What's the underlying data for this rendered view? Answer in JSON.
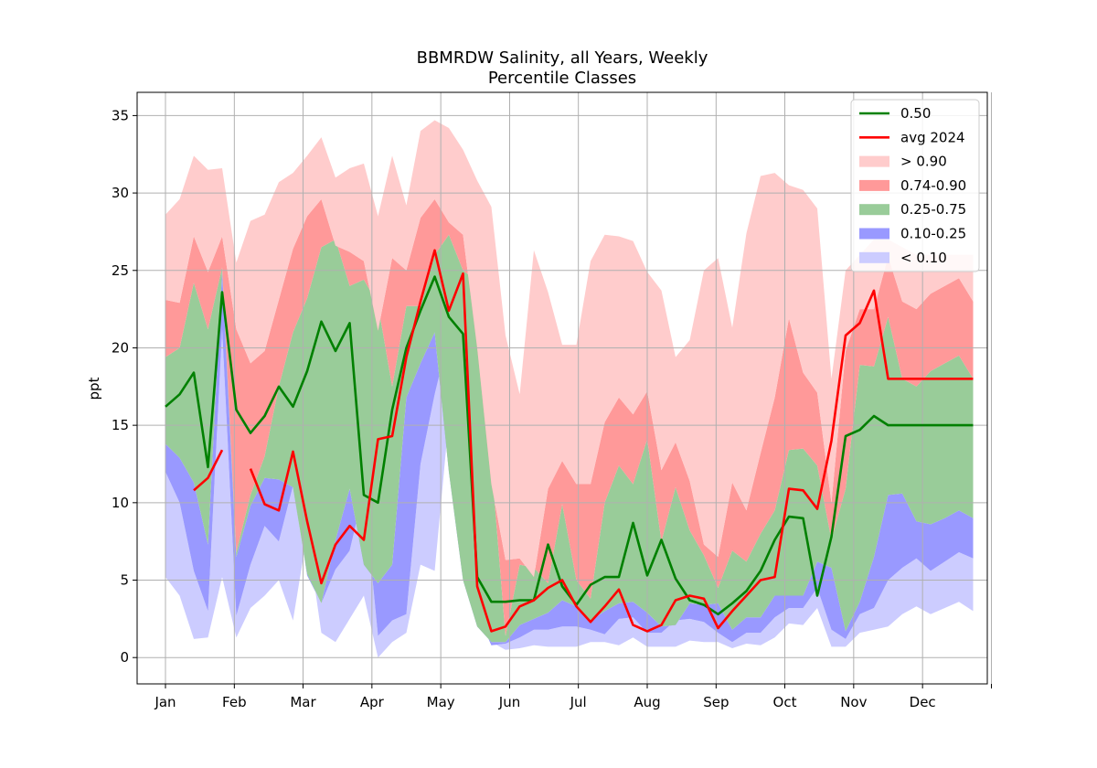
{
  "chart_data": {
    "type": "area",
    "title": "BBMRDW Salinity, all Years, Weekly",
    "subtitle": "Percentile Classes",
    "ylabel": "ppt",
    "xlabel": "",
    "ylim": [
      -1.7,
      36.5
    ],
    "y_ticks": [
      0,
      5,
      10,
      15,
      20,
      25,
      30,
      35
    ],
    "month_labels": [
      "Jan",
      "Feb",
      "Mar",
      "Apr",
      "May",
      "Jun",
      "Jul",
      "Aug",
      "Sep",
      "Oct",
      "Nov",
      "Dec"
    ],
    "week_range": [
      -2,
      58
    ],
    "month_tick_weeks": [
      0,
      4.86,
      9.71,
      14.57,
      19.43,
      24.29,
      29.14,
      34,
      38.86,
      43.71,
      48.57,
      53.43,
      58.29
    ],
    "grid": true,
    "legend_position": "top-right",
    "colors": {
      "median": "#008000",
      "avg_2024": "#ff0000",
      "band_gt_090": "#ffcccc",
      "band_074_090": "#ff9999",
      "band_025_075": "#99cc99",
      "band_010_025": "#9999ff",
      "band_lt_010": "#ccccff"
    },
    "legend": [
      "0.50",
      "avg 2024",
      "> 0.90",
      "0.74-0.90",
      "0.25-0.75",
      "0.10-0.25",
      "< 0.10"
    ],
    "weeks": [
      0,
      1,
      2,
      3,
      4,
      5,
      6,
      7,
      8,
      9,
      10,
      11,
      12,
      13,
      14,
      15,
      16,
      17,
      18,
      19,
      20,
      21,
      22,
      23,
      24,
      25,
      26,
      27,
      28,
      29,
      30,
      31,
      32,
      33,
      34,
      35,
      36,
      37,
      38,
      39,
      40,
      41,
      42,
      43,
      44,
      45,
      46,
      47,
      48,
      49,
      50,
      51,
      52,
      53,
      54,
      55,
      56,
      57
    ],
    "percentiles": {
      "p_min": [
        5.2,
        4.0,
        1.2,
        1.3,
        5.2,
        1.3,
        3.2,
        4.0,
        5.0,
        2.4,
        8.0,
        1.6,
        1.0,
        2.5,
        4.0,
        0.0,
        1.0,
        1.6,
        6.0,
        5.6,
        15.4,
        16.5,
        3.0,
        1.0,
        0.5,
        0.6,
        0.8,
        0.7,
        0.7,
        0.7,
        1.0,
        1.0,
        0.8,
        1.3,
        0.7,
        0.7,
        0.7,
        1.1,
        1.0,
        1.0,
        0.6,
        0.9,
        0.8,
        1.3,
        2.2,
        2.1,
        3.2,
        0.7,
        0.7,
        1.6,
        1.8,
        2.0,
        2.8,
        3.3,
        2.8,
        3.2,
        3.6,
        3.0
      ],
      "p10": [
        12.0,
        10.0,
        5.6,
        3.0,
        21.2,
        2.7,
        6.0,
        8.5,
        7.5,
        11.1,
        5.3,
        3.5,
        5.7,
        6.9,
        10.8,
        1.4,
        2.4,
        2.8,
        12.5,
        17.0,
        20.8,
        5.0,
        2.8,
        0.8,
        0.9,
        1.3,
        1.8,
        1.8,
        2.0,
        2.0,
        1.8,
        1.5,
        2.5,
        2.6,
        1.6,
        1.6,
        2.4,
        2.5,
        2.3,
        1.6,
        1.0,
        1.6,
        1.6,
        2.6,
        3.2,
        3.2,
        4.5,
        1.8,
        1.2,
        2.8,
        3.2,
        5.0,
        5.8,
        6.4,
        5.6,
        6.2,
        6.8,
        6.4
      ],
      "p25": [
        13.8,
        12.9,
        11.3,
        7.3,
        25.0,
        6.5,
        9.8,
        11.6,
        11.5,
        11.0,
        5.4,
        3.5,
        7.6,
        10.9,
        6.0,
        4.8,
        6.0,
        16.8,
        19.0,
        21.0,
        12.0,
        5.0,
        2.0,
        1.0,
        1.0,
        2.1,
        2.5,
        2.9,
        3.7,
        3.3,
        2.4,
        3.0,
        3.5,
        3.6,
        2.9,
        2.0,
        2.1,
        3.5,
        3.4,
        3.5,
        1.8,
        2.6,
        2.6,
        4.0,
        4.0,
        4.0,
        6.2,
        5.8,
        1.7,
        3.6,
        6.5,
        10.5,
        10.6,
        8.8,
        8.6,
        9.0,
        9.5,
        9.0
      ],
      "p75": [
        19.4,
        20.0,
        24.2,
        21.2,
        25.2,
        6.8,
        10.5,
        13.0,
        17.5,
        21.0,
        23.2,
        26.5,
        27.0,
        24.0,
        24.4,
        22.8,
        17.5,
        22.7,
        22.7,
        26.0,
        27.3,
        25.0,
        24.3,
        12.6,
        1.4,
        6.0,
        5.8,
        4.8,
        9.9,
        5.0,
        3.8,
        10.0,
        12.4,
        11.2,
        14.1,
        7.5,
        11.0,
        8.2,
        6.6,
        4.5,
        6.9,
        6.2,
        8.0,
        9.5,
        13.4,
        13.5,
        12.4,
        7.6,
        10.9,
        18.9,
        18.8,
        22.0,
        18.0,
        17.5,
        18.5,
        19.0,
        19.5,
        18.0
      ],
      "p90": [
        23.1,
        22.9,
        27.2,
        24.9,
        27.2,
        21.2,
        19.0,
        19.8,
        23.1,
        26.4,
        28.5,
        29.6,
        26.6,
        26.2,
        25.6,
        21.1,
        25.8,
        25.0,
        28.4,
        29.6,
        28.1,
        27.3,
        20.0,
        11.2,
        6.3,
        6.4,
        5.2,
        10.9,
        12.7,
        11.2,
        11.2,
        15.2,
        16.8,
        15.7,
        17.2,
        12.1,
        13.9,
        11.4,
        7.3,
        6.5,
        11.3,
        9.5,
        13.2,
        16.8,
        21.9,
        18.4,
        17.1,
        10.0,
        19.8,
        22.5,
        22.5,
        25.9,
        23.0,
        22.5,
        23.5,
        24.0,
        24.5,
        23.0
      ],
      "p_max": [
        28.6,
        29.6,
        32.4,
        31.5,
        31.6,
        25.5,
        28.2,
        28.6,
        30.7,
        31.3,
        32.4,
        33.6,
        31.0,
        31.6,
        31.9,
        28.5,
        32.4,
        29.2,
        34.0,
        34.7,
        34.2,
        32.8,
        30.8,
        29.1,
        20.8,
        17.0,
        26.3,
        23.6,
        20.2,
        20.2,
        25.6,
        27.3,
        27.2,
        26.9,
        24.9,
        23.7,
        19.4,
        20.5,
        25.0,
        25.8,
        21.3,
        27.4,
        31.1,
        31.3,
        30.5,
        30.2,
        29.0,
        18.0,
        25.0,
        26.0,
        27.0,
        27.0,
        26.5,
        26.0,
        26.0,
        26.0,
        26.0,
        26.0
      ]
    },
    "series": [
      {
        "name": "0.50",
        "x": [
          0,
          1,
          2,
          3,
          4,
          5,
          6,
          7,
          8,
          9,
          10,
          11,
          12,
          13,
          14,
          15,
          16,
          17,
          18,
          19,
          20,
          21,
          22,
          23,
          24,
          25,
          26,
          27,
          28,
          29,
          30,
          31,
          32,
          33,
          34,
          35,
          36,
          37,
          38,
          39,
          40,
          41,
          42,
          43,
          44,
          45,
          46,
          47,
          48,
          49,
          50,
          51,
          52,
          53,
          54,
          55,
          56,
          57
        ],
        "values": [
          16.2,
          17.0,
          18.4,
          12.3,
          23.6,
          16.0,
          14.5,
          15.6,
          17.5,
          16.2,
          18.5,
          21.7,
          19.8,
          21.6,
          10.5,
          10.0,
          16.0,
          20.0,
          22.4,
          24.6,
          22.0,
          20.9,
          5.2,
          3.6,
          3.6,
          3.7,
          3.7,
          7.3,
          4.6,
          3.4,
          4.7,
          5.2,
          5.2,
          8.7,
          5.3,
          7.6,
          5.1,
          3.7,
          3.4,
          2.8,
          3.5,
          4.3,
          5.6,
          7.6,
          9.1,
          9.0,
          4.0,
          7.8,
          14.3,
          14.7,
          15.6,
          15.0,
          15.0,
          15.0,
          15.0,
          15.0,
          15.0,
          15.0
        ]
      },
      {
        "name": "avg 2024",
        "segments": [
          {
            "x": [
              2,
              3,
              4
            ],
            "values": [
              10.8,
              11.6,
              13.4
            ]
          },
          {
            "x": [
              6,
              7,
              8,
              9,
              10,
              11,
              12,
              13,
              14,
              15,
              16,
              17,
              18,
              19,
              20,
              21,
              22,
              23,
              24,
              25,
              26,
              27,
              28,
              29,
              30,
              31,
              32,
              33,
              34,
              35,
              36,
              37,
              38,
              39,
              40,
              41,
              42,
              43,
              44,
              45,
              46,
              47,
              48,
              49,
              50,
              51,
              52,
              53,
              54,
              55,
              56,
              57
            ],
            "values": [
              12.2,
              9.9,
              9.5,
              13.3,
              8.8,
              4.8,
              7.3,
              8.5,
              7.6,
              14.1,
              14.3,
              19.4,
              23.0,
              26.3,
              22.4,
              24.8,
              4.6,
              1.7,
              2.0,
              3.3,
              3.7,
              4.5,
              5.0,
              3.3,
              2.3,
              3.3,
              4.4,
              2.1,
              1.7,
              2.1,
              3.7,
              4.0,
              3.8,
              1.9,
              3.0,
              4.0,
              5.0,
              5.2,
              10.9,
              10.8,
              9.6,
              14.0,
              20.8,
              21.6,
              23.7,
              18.0,
              18.0,
              18.0,
              18.0,
              18.0,
              18.0,
              18.0
            ]
          }
        ]
      }
    ]
  }
}
